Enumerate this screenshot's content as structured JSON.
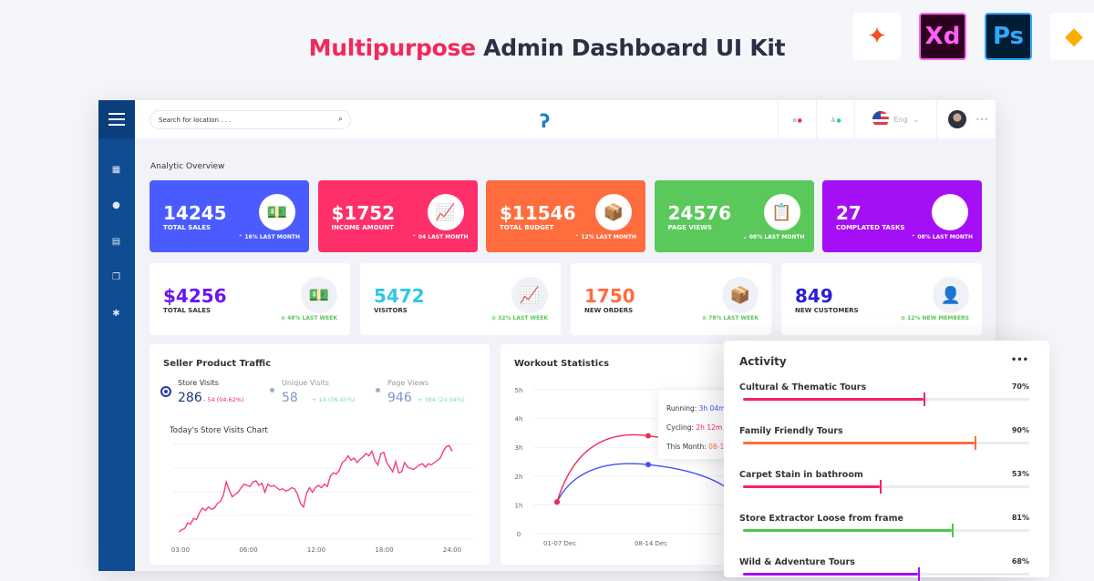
{
  "hero": {
    "accent": "Multipurpose",
    "rest": " Admin Dashboard UI Kit"
  },
  "tools": [
    {
      "name": "figma",
      "label": "✦",
      "bg": "#ffffff",
      "fg": "#f24e1e"
    },
    {
      "name": "xd",
      "label": "Xd",
      "bg": "#2e001f",
      "fg": "#ff61f6"
    },
    {
      "name": "ps",
      "label": "Ps",
      "bg": "#001d34",
      "fg": "#31a8ff"
    },
    {
      "name": "sketch",
      "label": "◆",
      "bg": "#ffffff",
      "fg": "#fdad00"
    }
  ],
  "header": {
    "search_placeholder": "Search for location . . .",
    "language": "Eng",
    "more": "•••"
  },
  "section_title": "Analytic Overview",
  "stat_cards": [
    {
      "value": "14245",
      "label": "TOTAL SALES",
      "trend": "⌃  16% LAST MONTH",
      "color": "#4a5cff",
      "icon": "money-stack-icon",
      "glyph": "💵"
    },
    {
      "value": "$1752",
      "label": "INCOME AMOUNT",
      "trend": "⌃  04 LAST MONTH",
      "color": "#ff2f6a",
      "icon": "growth-chart-icon",
      "glyph": "📈"
    },
    {
      "value": "$11546",
      "label": "TOTAL BUDGET",
      "trend": "⌃  12% LAST MONTH",
      "color": "#ff6c3e",
      "icon": "package-icon",
      "glyph": "📦"
    },
    {
      "value": "24576",
      "label": "PAGE VIEWS",
      "trend": "⌄  08% LAST MONTH",
      "color": "#5ac85a",
      "icon": "checklist-icon",
      "glyph": "📋"
    },
    {
      "value": "27",
      "label": "COMPLATED TASKS",
      "trend": "⌃  08% LAST MONTH",
      "color": "#a50ff5",
      "icon": "task-board-icon",
      "glyph": "🗂"
    }
  ],
  "small_cards": [
    {
      "value": "$4256",
      "label": "TOTAL SALES",
      "trend": "⊙  48% LAST WEEK",
      "color": "#6a14f0",
      "icon": "money-stack-icon",
      "glyph": "💵"
    },
    {
      "value": "5472",
      "label": "VISITORS",
      "trend": "⊙  32% LAST WEEK",
      "color": "#2ec8e6",
      "icon": "growth-chart-icon",
      "glyph": "📈"
    },
    {
      "value": "1750",
      "label": "NEW ORDERS",
      "trend": "⊙  78% LAST WEEK",
      "color": "#ff6c3e",
      "icon": "package-icon",
      "glyph": "📦"
    },
    {
      "value": "849",
      "label": "NEW CUSTOMERS",
      "trend": "⊙  12% NEW MEMBERS",
      "color": "#2a1fd6",
      "icon": "customer-support-icon",
      "glyph": "👤"
    }
  ],
  "traffic": {
    "title": "Seller Product Traffic",
    "metrics": [
      {
        "label": "Store Visits",
        "value": "286",
        "delta": "- 54 (04.62%)",
        "delta_color": "#f2295b",
        "value_color": "#1e3a7a"
      },
      {
        "label": "Unique Visits",
        "value": "58",
        "delta": "+ 14 (06.45%)",
        "delta_color": "#7fdcb3",
        "value_color": "#7d97c8"
      },
      {
        "label": "Page Views",
        "value": "946",
        "delta": "+ 384 (24.94%)",
        "delta_color": "#7fdcb3",
        "value_color": "#7d97c8"
      }
    ],
    "chart_title": "Today's Store Visits Chart"
  },
  "workout": {
    "title": "Workout Statistics",
    "tooltip": [
      {
        "label": "Running: ",
        "value": "3h 04m",
        "color": "#4350ff"
      },
      {
        "label": "Cycling: ",
        "value": "2h 12m",
        "color": "#f2295b"
      },
      {
        "label": "This Month: ",
        "value": "08-1",
        "color": "#ff6c3e"
      }
    ]
  },
  "activity": {
    "title": "Activity",
    "more": "•••",
    "items": [
      {
        "name": "Cultural & Thematic Tours",
        "percent": 70,
        "label": "70%",
        "color": "#f5245f"
      },
      {
        "name": "Family Friendly Tours",
        "percent": 90,
        "label": "90%",
        "color": "#ff6b3d"
      },
      {
        "name": "Carpet Stain in bathroom",
        "percent": 53,
        "label": "53%",
        "color": "#f5245f"
      },
      {
        "name": "Store Extractor Loose from frame",
        "percent": 81,
        "label": "81%",
        "color": "#4cc74c"
      },
      {
        "name": "Wild & Adventure Tours",
        "percent": 68,
        "label": "68%",
        "color": "#a50ff5"
      }
    ]
  },
  "chart_data": [
    {
      "type": "line",
      "title": "Today's Store Visits Chart",
      "x_ticks": [
        "03:00",
        "06:00",
        "12:00",
        "18:00",
        "24:00"
      ],
      "grid": true,
      "color": "#f83e76",
      "values": [
        3,
        5,
        6,
        11,
        10,
        15,
        14,
        20,
        24,
        22,
        25,
        23,
        24,
        28,
        30,
        35,
        47,
        40,
        34,
        36,
        38,
        42,
        45,
        44,
        43,
        47,
        48,
        44,
        46,
        38,
        45,
        43,
        44,
        42,
        40,
        41,
        39,
        40,
        42,
        41,
        36,
        28,
        25,
        37,
        42,
        38,
        42,
        44,
        42,
        45,
        43,
        52,
        55,
        54,
        57,
        64,
        66,
        70,
        66,
        68,
        64,
        67,
        69,
        72,
        70,
        74,
        66,
        62,
        72,
        73,
        64,
        60,
        56,
        65,
        55,
        56,
        64,
        60,
        59,
        58,
        60,
        62,
        63,
        60,
        63,
        62,
        64,
        66,
        68,
        74,
        78,
        79,
        74
      ]
    },
    {
      "type": "line",
      "title": "Workout Statistics",
      "y_ticks": [
        "0",
        "1h",
        "2h",
        "3h",
        "4h",
        "5h"
      ],
      "ylim": [
        0,
        5
      ],
      "x_ticks": [
        "01-07 Dec",
        "08-14 Dec"
      ],
      "grid": true,
      "series": [
        {
          "name": "Running",
          "color": "#4350ff",
          "values": [
            1.1,
            2.4,
            1.2
          ]
        },
        {
          "name": "Cycling",
          "color": "#f2295b",
          "values": [
            1.1,
            3.4,
            2.6
          ]
        }
      ]
    }
  ]
}
